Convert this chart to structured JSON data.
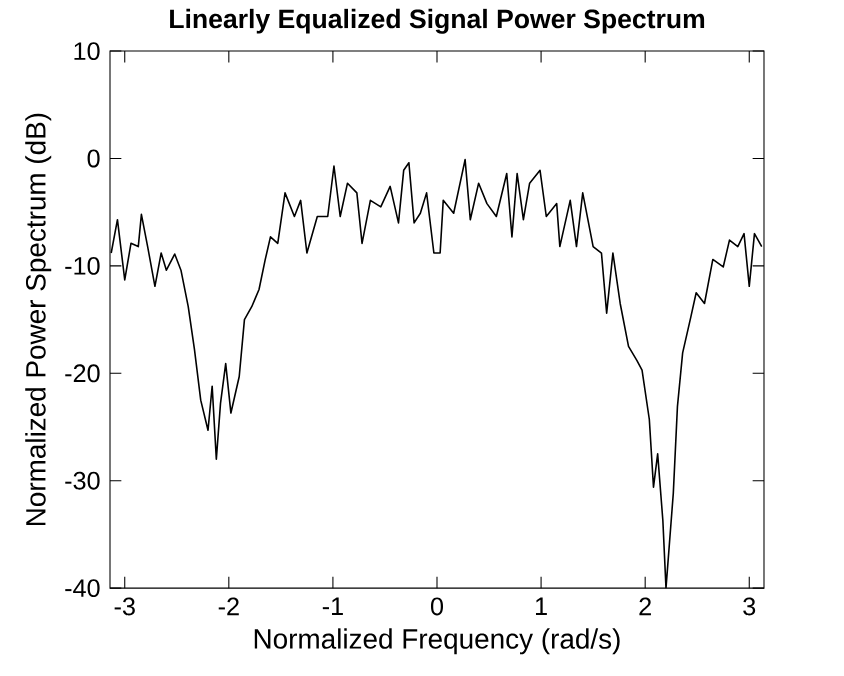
{
  "chart_data": {
    "type": "line",
    "title": "Linearly Equalized Signal Power Spectrum",
    "xlabel": "Normalized Frequency (rad/s)",
    "ylabel": "Normalized Power Spectrum (dB)",
    "xlim": [
      -3.1416,
      3.1416
    ],
    "ylim": [
      -40,
      10
    ],
    "xticks": [
      -3,
      -2,
      -1,
      0,
      1,
      2,
      3
    ],
    "yticks": [
      -40,
      -30,
      -20,
      -10,
      0,
      10
    ],
    "series": [
      {
        "color": "#000000",
        "x": [
          -3.13,
          -3.07,
          -3.0,
          -2.94,
          -2.87,
          -2.84,
          -2.78,
          -2.71,
          -2.65,
          -2.6,
          -2.52,
          -2.46,
          -2.39,
          -2.33,
          -2.27,
          -2.2,
          -2.16,
          -2.12,
          -2.08,
          -2.03,
          -1.98,
          -1.9,
          -1.85,
          -1.78,
          -1.71,
          -1.65,
          -1.6,
          -1.53,
          -1.46,
          -1.37,
          -1.31,
          -1.25,
          -1.15,
          -1.05,
          -0.99,
          -0.93,
          -0.86,
          -0.77,
          -0.72,
          -0.64,
          -0.54,
          -0.45,
          -0.37,
          -0.32,
          -0.27,
          -0.22,
          -0.16,
          -0.1,
          -0.03,
          0.03,
          0.06,
          0.16,
          0.27,
          0.32,
          0.4,
          0.48,
          0.57,
          0.67,
          0.72,
          0.77,
          0.83,
          0.89,
          0.99,
          1.05,
          1.15,
          1.18,
          1.28,
          1.34,
          1.4,
          1.5,
          1.58,
          1.63,
          1.69,
          1.76,
          1.84,
          1.92,
          1.97,
          2.04,
          2.08,
          2.12,
          2.17,
          2.2,
          2.27,
          2.31,
          2.36,
          2.44,
          2.49,
          2.57,
          2.65,
          2.75,
          2.81,
          2.89,
          2.95,
          3.0,
          3.05,
          3.12
        ],
        "values": [
          -8.8,
          -5.7,
          -11.3,
          -7.9,
          -8.2,
          -5.2,
          -8.2,
          -11.9,
          -8.8,
          -10.4,
          -8.9,
          -10.4,
          -13.8,
          -17.8,
          -22.5,
          -25.3,
          -21.2,
          -28,
          -22.8,
          -19.1,
          -23.7,
          -20.3,
          -15,
          -13.8,
          -12.2,
          -9.4,
          -7.3,
          -7.9,
          -3.2,
          -5.4,
          -3.9,
          -8.8,
          -5.4,
          -5.4,
          -0.7,
          -5.4,
          -2.3,
          -3.2,
          -7.9,
          -3.9,
          -4.5,
          -2.6,
          -6.0,
          -1.1,
          -0.4,
          -6.0,
          -5.1,
          -3.2,
          -8.8,
          -8.8,
          -3.9,
          -5.1,
          -0.1,
          -5.7,
          -2.3,
          -4.2,
          -5.4,
          -1.4,
          -7.3,
          -1.4,
          -5.7,
          -2.3,
          -1.1,
          -5.4,
          -4.2,
          -8.2,
          -3.9,
          -8.2,
          -3.2,
          -8.2,
          -8.8,
          -14.4,
          -8.8,
          -13.5,
          -17.5,
          -18.8,
          -19.7,
          -24.3,
          -30.6,
          -27.5,
          -33.7,
          -40,
          -31.2,
          -23.1,
          -18.1,
          -14.7,
          -12.5,
          -13.5,
          -9.4,
          -10.1,
          -7.6,
          -8.2,
          -7.0,
          -11.9,
          -7.0,
          -8.2
        ]
      }
    ]
  }
}
